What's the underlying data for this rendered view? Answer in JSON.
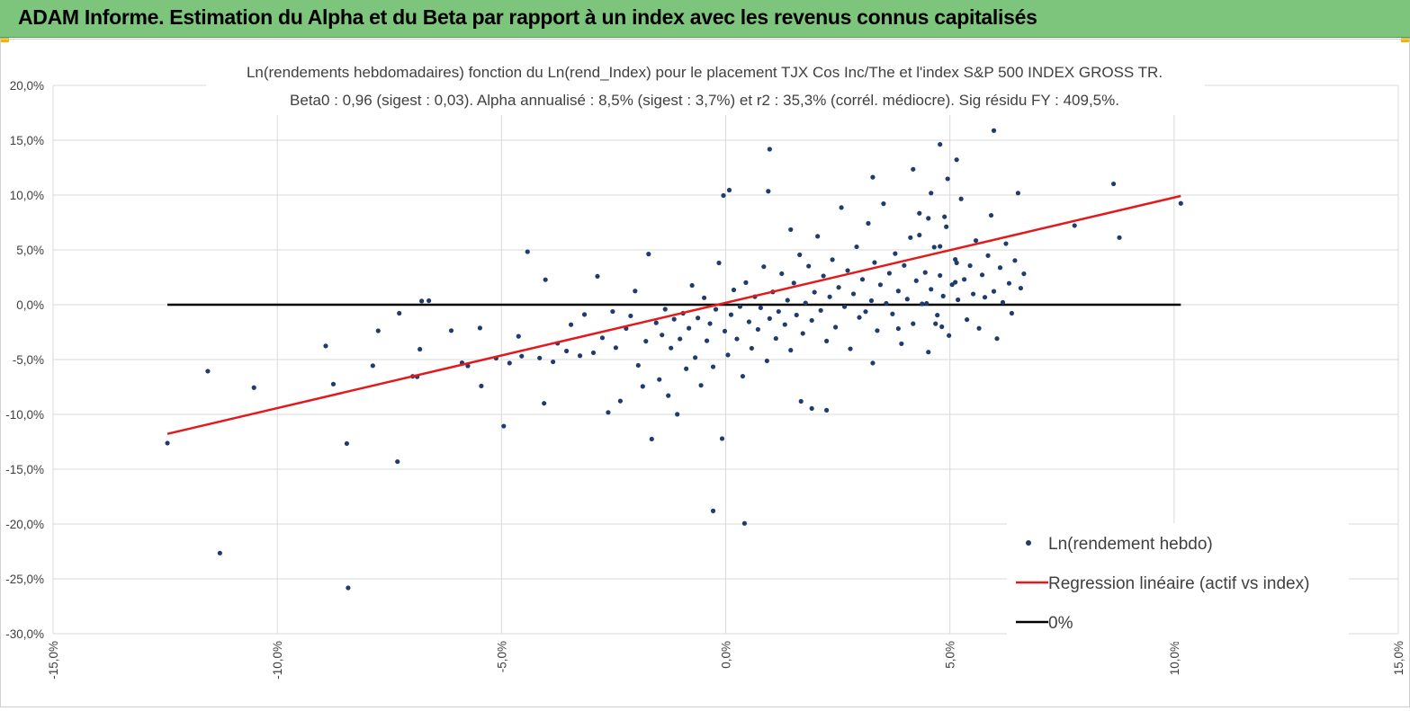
{
  "header": {
    "title": "ADAM Informe. Estimation du Alpha et du Beta par rapport à un index avec les revenus connus capitalisés",
    "accent_color": "#7dc57c",
    "corner_color": "#f2b400"
  },
  "chart_data": {
    "type": "scatter",
    "title": "Ln(rendements hebdomadaires) fonction du Ln(rend_Index) pour le placement TJX Cos Inc/The et l'index S&P 500 INDEX GROSS TR.",
    "subtitle": "Beta0 : 0,96  (sigest : 0,03).  Alpha annualisé : 8,5% (sigest : 3,7%) et r2 : 35,3% (corrél. médiocre). Sig résidu FY : 409,5%.",
    "xlim": [
      -0.15,
      0.15
    ],
    "ylim": [
      -0.3,
      0.2
    ],
    "x_ticks": [
      "-15,0%",
      "-10,0%",
      "-5,0%",
      "0,0%",
      "5,0%",
      "10,0%",
      "15,0%"
    ],
    "y_ticks": [
      "20,0%",
      "15,0%",
      "10,0%",
      "5,0%",
      "0,0%",
      "-5,0%",
      "-10,0%",
      "-15,0%",
      "-20,0%",
      "-25,0%",
      "-30,0%"
    ],
    "grid": true,
    "legend_position": "bottom-right",
    "series": [
      {
        "name": "Ln(rendement hebdo)",
        "color": "#1f3c6e",
        "points": [
          [
            -0.1245,
            -0.1262
          ],
          [
            -0.1155,
            -0.0606
          ],
          [
            -0.1128,
            -0.2265
          ],
          [
            -0.1052,
            -0.0756
          ],
          [
            -0.0892,
            -0.0376
          ],
          [
            -0.0875,
            -0.0724
          ],
          [
            -0.0845,
            -0.1266
          ],
          [
            -0.0842,
            -0.2582
          ],
          [
            -0.0787,
            -0.0556
          ],
          [
            -0.0775,
            -0.0238
          ],
          [
            -0.0732,
            -0.1431
          ],
          [
            -0.0728,
            -0.0078
          ],
          [
            -0.0698,
            -0.0653
          ],
          [
            -0.0688,
            -0.0657
          ],
          [
            -0.0682,
            -0.0406
          ],
          [
            -0.0678,
            0.0034
          ],
          [
            -0.0662,
            0.0037
          ],
          [
            -0.0612,
            -0.0236
          ],
          [
            -0.0588,
            -0.0529
          ],
          [
            -0.0575,
            -0.0558
          ],
          [
            -0.0548,
            -0.0212
          ],
          [
            -0.0545,
            -0.0741
          ],
          [
            -0.0512,
            -0.0488
          ],
          [
            -0.0495,
            -0.1107
          ],
          [
            -0.0482,
            -0.0532
          ],
          [
            -0.0462,
            -0.0288
          ],
          [
            -0.0455,
            -0.0469
          ],
          [
            -0.0442,
            0.0483
          ],
          [
            -0.0415,
            -0.0486
          ],
          [
            -0.0402,
            0.0228
          ],
          [
            -0.0405,
            -0.0899
          ],
          [
            -0.0385,
            -0.0521
          ],
          [
            -0.0375,
            -0.0352
          ],
          [
            -0.0355,
            -0.0422
          ],
          [
            -0.0345,
            -0.0182
          ],
          [
            -0.0325,
            -0.0465
          ],
          [
            -0.0315,
            -0.0089
          ],
          [
            -0.0295,
            -0.0438
          ],
          [
            -0.0286,
            0.0259
          ],
          [
            -0.0275,
            -0.0302
          ],
          [
            -0.0262,
            -0.0982
          ],
          [
            -0.0252,
            -0.0062
          ],
          [
            -0.0245,
            -0.0392
          ],
          [
            -0.0235,
            -0.0878
          ],
          [
            -0.0222,
            -0.0216
          ],
          [
            -0.0212,
            -0.0102
          ],
          [
            -0.0202,
            0.0125
          ],
          [
            -0.0195,
            -0.0553
          ],
          [
            -0.0185,
            -0.0745
          ],
          [
            -0.0178,
            -0.0333
          ],
          [
            -0.0172,
            0.0462
          ],
          [
            -0.0165,
            -0.1225
          ],
          [
            -0.0155,
            -0.0165
          ],
          [
            -0.0148,
            -0.0682
          ],
          [
            -0.0142,
            -0.0276
          ],
          [
            -0.0135,
            -0.0041
          ],
          [
            -0.0128,
            -0.0829
          ],
          [
            -0.0122,
            -0.0395
          ],
          [
            -0.0115,
            -0.0132
          ],
          [
            -0.0108,
            -0.0999
          ],
          [
            -0.0102,
            -0.0312
          ],
          [
            -0.0095,
            -0.0078
          ],
          [
            -0.0088,
            -0.0584
          ],
          [
            -0.0082,
            -0.0214
          ],
          [
            -0.0075,
            0.0176
          ],
          [
            -0.0068,
            -0.0482
          ],
          [
            -0.0062,
            -0.0121
          ],
          [
            -0.0055,
            -0.0735
          ],
          [
            -0.0048,
            0.0063
          ],
          [
            -0.0042,
            -0.0329
          ],
          [
            -0.0035,
            -0.0172
          ],
          [
            -0.0028,
            -0.0566
          ],
          [
            -0.0022,
            -0.0042
          ],
          [
            -0.0015,
            0.0381
          ],
          [
            -0.0008,
            -0.1221
          ],
          [
            -0.0002,
            -0.0241
          ],
          [
            0.0005,
            -0.0458
          ],
          [
            0.0012,
            -0.0091
          ],
          [
            0.0018,
            0.0135
          ],
          [
            0.0025,
            -0.0312
          ],
          [
            0.0032,
            -0.0017
          ],
          [
            0.0038,
            -0.0652
          ],
          [
            0.0045,
            0.0202
          ],
          [
            0.0052,
            -0.0156
          ],
          [
            0.0058,
            -0.0397
          ],
          [
            0.0065,
            0.0073
          ],
          [
            0.0072,
            -0.0225
          ],
          [
            0.0078,
            -0.0028
          ],
          [
            0.0085,
            0.0347
          ],
          [
            0.0092,
            -0.0512
          ],
          [
            0.0098,
            -0.0126
          ],
          [
            0.0105,
            0.0117
          ],
          [
            0.0112,
            -0.0308
          ],
          [
            0.0118,
            -0.0062
          ],
          [
            0.0125,
            0.0283
          ],
          [
            0.0132,
            -0.0181
          ],
          [
            0.0138,
            0.0041
          ],
          [
            0.0145,
            -0.0415
          ],
          [
            0.0152,
            0.0198
          ],
          [
            0.0158,
            -0.0094
          ],
          [
            0.0165,
            0.0455
          ],
          [
            0.0172,
            -0.0262
          ],
          [
            0.0178,
            0.0016
          ],
          [
            0.0185,
            0.0352
          ],
          [
            0.0192,
            -0.0143
          ],
          [
            0.0198,
            0.0114
          ],
          [
            0.0205,
            0.0624
          ],
          [
            0.0212,
            -0.0052
          ],
          [
            0.0218,
            0.0263
          ],
          [
            0.0225,
            -0.0331
          ],
          [
            0.0232,
            0.0072
          ],
          [
            0.0238,
            0.0411
          ],
          [
            0.0245,
            -0.0205
          ],
          [
            0.0252,
            0.0158
          ],
          [
            0.0258,
            0.0886
          ],
          [
            0.0265,
            -0.0018
          ],
          [
            0.0272,
            0.0312
          ],
          [
            0.0278,
            -0.0402
          ],
          [
            0.0285,
            0.0099
          ],
          [
            0.0292,
            0.0528
          ],
          [
            0.0298,
            -0.0116
          ],
          [
            0.0305,
            0.0231
          ],
          [
            0.0312,
            -0.0063
          ],
          [
            0.0318,
            0.0742
          ],
          [
            0.0325,
            0.0037
          ],
          [
            0.0332,
            0.0385
          ],
          [
            0.0338,
            -0.0236
          ],
          [
            0.0345,
            0.0182
          ],
          [
            0.0352,
            0.0921
          ],
          [
            0.0358,
            0.0013
          ],
          [
            0.0365,
            0.0287
          ],
          [
            0.0372,
            -0.0084
          ],
          [
            0.0378,
            0.0466
          ],
          [
            0.0385,
            0.0125
          ],
          [
            0.0392,
            -0.0356
          ],
          [
            0.0398,
            0.0358
          ],
          [
            0.0405,
            0.0051
          ],
          [
            0.0412,
            0.0612
          ],
          [
            0.0418,
            -0.0173
          ],
          [
            0.0425,
            0.0219
          ],
          [
            0.0432,
            0.0834
          ],
          [
            0.0438,
            0.0008
          ],
          [
            0.0445,
            0.0294
          ],
          [
            0.0452,
            -0.0432
          ],
          [
            0.0458,
            0.0141
          ],
          [
            0.0465,
            0.0525
          ],
          [
            0.0472,
            -0.0095
          ],
          [
            0.0478,
            0.0267
          ],
          [
            0.0485,
            0.0079
          ],
          [
            0.0492,
            0.0711
          ],
          [
            0.0498,
            -0.0281
          ],
          [
            0.0505,
            0.0183
          ],
          [
            0.0512,
            0.0413
          ],
          [
            0.0518,
            0.0045
          ],
          [
            0.0525,
            0.0965
          ],
          [
            0.0532,
            0.0231
          ],
          [
            0.0538,
            -0.0136
          ],
          [
            0.0545,
            0.0356
          ],
          [
            0.0552,
            0.0098
          ],
          [
            0.0558,
            0.0585
          ],
          [
            0.0565,
            -0.0215
          ],
          [
            0.0572,
            0.0272
          ],
          [
            0.0578,
            0.0068
          ],
          [
            0.0585,
            0.0448
          ],
          [
            0.0592,
            0.0815
          ],
          [
            0.0598,
            0.0122
          ],
          [
            0.0605,
            -0.0309
          ],
          [
            0.0612,
            0.0338
          ],
          [
            0.0618,
            0.0022
          ],
          [
            0.0625,
            0.0557
          ],
          [
            0.0632,
            0.0195
          ],
          [
            0.0638,
            -0.0078
          ],
          [
            0.0645,
            0.0403
          ],
          [
            0.0652,
            0.1018
          ],
          [
            0.0658,
            0.0151
          ],
          [
            0.0665,
            0.0282
          ],
          [
            -0.0028,
            -0.188
          ],
          [
            0.0042,
            -0.1994
          ],
          [
            0.0098,
            0.1418
          ],
          [
            0.0095,
            0.1035
          ],
          [
            -0.0005,
            0.0996
          ],
          [
            0.0008,
            0.1045
          ],
          [
            0.0145,
            0.0685
          ],
          [
            0.0168,
            -0.0881
          ],
          [
            0.0192,
            -0.0946
          ],
          [
            0.0225,
            -0.0962
          ],
          [
            0.0328,
            -0.0532
          ],
          [
            0.0478,
            0.1462
          ],
          [
            0.0495,
            0.1148
          ],
          [
            0.0515,
            0.1322
          ],
          [
            0.0598,
            0.1588
          ],
          [
            0.0418,
            0.1235
          ],
          [
            0.0328,
            0.1163
          ],
          [
            0.0458,
            0.1018
          ],
          [
            0.0778,
            0.0722
          ],
          [
            0.0865,
            0.1102
          ],
          [
            0.0878,
            0.0612
          ],
          [
            0.1015,
            0.0924
          ],
          [
            0.0515,
            0.0382
          ],
          [
            0.0512,
            0.0205
          ],
          [
            0.0482,
            -0.0201
          ],
          [
            0.0468,
            -0.0173
          ],
          [
            0.0448,
            0.0012
          ],
          [
            0.0385,
            -0.0218
          ],
          [
            0.0452,
            0.0788
          ],
          [
            0.0432,
            0.0635
          ],
          [
            0.0488,
            0.0802
          ],
          [
            0.0478,
            0.0532
          ]
        ]
      },
      {
        "name": "Regression linéaire (actif vs index)",
        "color": "#e31a1c",
        "line": [
          [
            -0.1245,
            -0.1178
          ],
          [
            0.1015,
            0.0992
          ]
        ]
      },
      {
        "name": "0%",
        "color": "#000000",
        "line": [
          [
            -0.1245,
            0.0
          ],
          [
            0.1015,
            0.0
          ]
        ]
      }
    ]
  }
}
